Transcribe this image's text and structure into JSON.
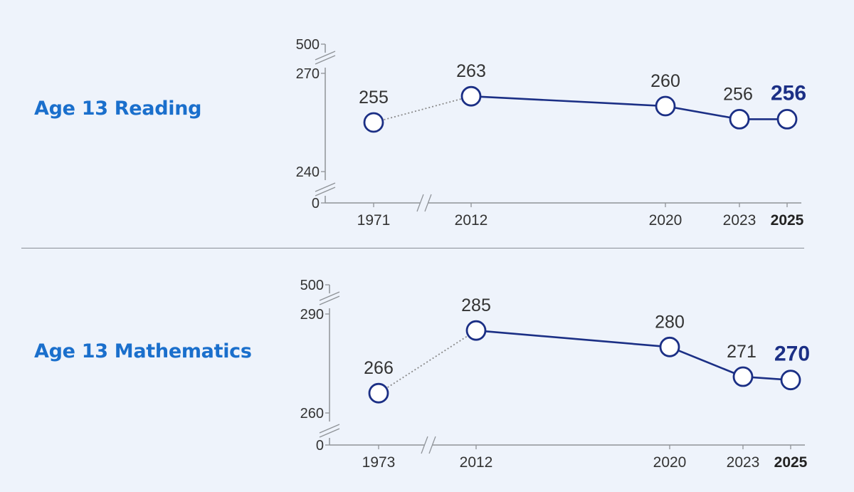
{
  "colors": {
    "background": "#eef3fb",
    "title": "#1a6fcc",
    "series_line": "#1b2f85",
    "dotted_line": "#8a8a8a",
    "axis": "#8f9398",
    "label": "#333333",
    "highlight_label": "#1b2f85"
  },
  "chart_data": [
    {
      "type": "line",
      "title": "Age 13 Reading",
      "x": [
        "1971",
        "2012",
        "2020",
        "2023",
        "2025"
      ],
      "values": [
        255,
        263,
        260,
        256,
        256
      ],
      "value_labels": [
        "255",
        "263",
        "260",
        "256",
        "256"
      ],
      "highlight_index": 4,
      "dotted_segments": [
        [
          0,
          1
        ]
      ],
      "y_ticks": [
        "500",
        "270",
        "240",
        "0"
      ],
      "ylim": [
        240,
        270
      ],
      "axis_breaks": [
        "y",
        "x"
      ],
      "grid": false
    },
    {
      "type": "line",
      "title": "Age 13 Mathematics",
      "x": [
        "1973",
        "2012",
        "2020",
        "2023",
        "2025"
      ],
      "values": [
        266,
        285,
        280,
        271,
        270
      ],
      "value_labels": [
        "266",
        "285",
        "280",
        "271",
        "270"
      ],
      "highlight_index": 4,
      "dotted_segments": [
        [
          0,
          1
        ]
      ],
      "y_ticks": [
        "500",
        "290",
        "260",
        "0"
      ],
      "ylim": [
        260,
        290
      ],
      "axis_breaks": [
        "y",
        "x"
      ],
      "grid": false
    }
  ]
}
